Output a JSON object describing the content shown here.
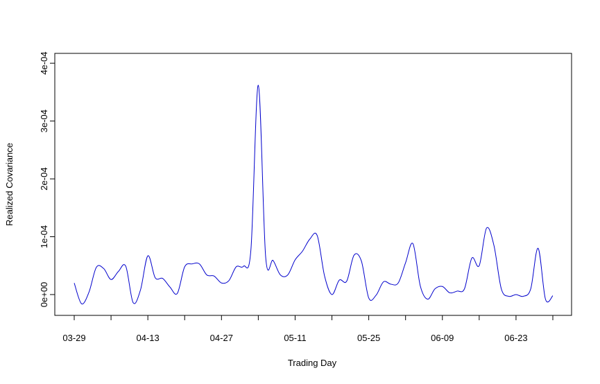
{
  "chart_data": {
    "type": "line",
    "xlabel": "Trading Day",
    "ylabel": "Realized Covariance",
    "categories": [
      "03-29",
      null,
      null,
      null,
      null,
      null,
      null,
      null,
      null,
      null,
      "04-13",
      null,
      null,
      null,
      null,
      null,
      null,
      null,
      null,
      null,
      "04-27",
      null,
      null,
      null,
      null,
      null,
      null,
      null,
      null,
      null,
      "05-11",
      null,
      null,
      null,
      null,
      null,
      null,
      null,
      null,
      null,
      "05-25",
      null,
      null,
      null,
      null,
      null,
      null,
      null,
      null,
      null,
      "06-09",
      null,
      null,
      null,
      null,
      null,
      null,
      null,
      null,
      null,
      "06-23",
      null,
      null,
      null,
      null,
      null
    ],
    "series": [
      {
        "color": "#0000cc",
        "values": [
          2e-05,
          -1.6e-05,
          4e-06,
          4.7e-05,
          4.5e-05,
          2.6e-05,
          4e-05,
          4.9e-05,
          -1.4e-05,
          8e-06,
          6.7e-05,
          2.9e-05,
          2.8e-05,
          1.3e-05,
          2e-06,
          4.8e-05,
          5.3e-05,
          5.3e-05,
          3.4e-05,
          3.2e-05,
          2e-05,
          2.4e-05,
          4.8e-05,
          4.9e-05,
          7.8e-05,
          0.000362,
          6.5e-05,
          5.9e-05,
          3.4e-05,
          3.4e-05,
          6e-05,
          7.5e-05,
          9.6e-05,
          0.000102,
          3.2e-05,
          0.0,
          2.5e-05,
          2.3e-05,
          6.8e-05,
          5.8e-05,
          -6e-06,
          -1e-06,
          2.2e-05,
          1.8e-05,
          2e-05,
          5.5e-05,
          8.8e-05,
          1.5e-05,
          -8e-06,
          1e-05,
          1.4e-05,
          3e-06,
          6e-06,
          1e-05,
          6.3e-05,
          5e-05,
          0.000115,
          8.5e-05,
          1e-05,
          -3e-06,
          0.0,
          -3e-06,
          1e-05,
          8e-05,
          -8e-06,
          -2e-06
        ]
      }
    ],
    "ylim": [
      -3.6e-05,
      0.000417
    ],
    "yticks": [
      {
        "value": 0,
        "label": "0e+00"
      },
      {
        "value": 0.0001,
        "label": "1e-04"
      },
      {
        "value": 0.0002,
        "label": "2e-04"
      },
      {
        "value": 0.0003,
        "label": "3e-04"
      },
      {
        "value": 0.0004,
        "label": "4e-04"
      }
    ]
  }
}
